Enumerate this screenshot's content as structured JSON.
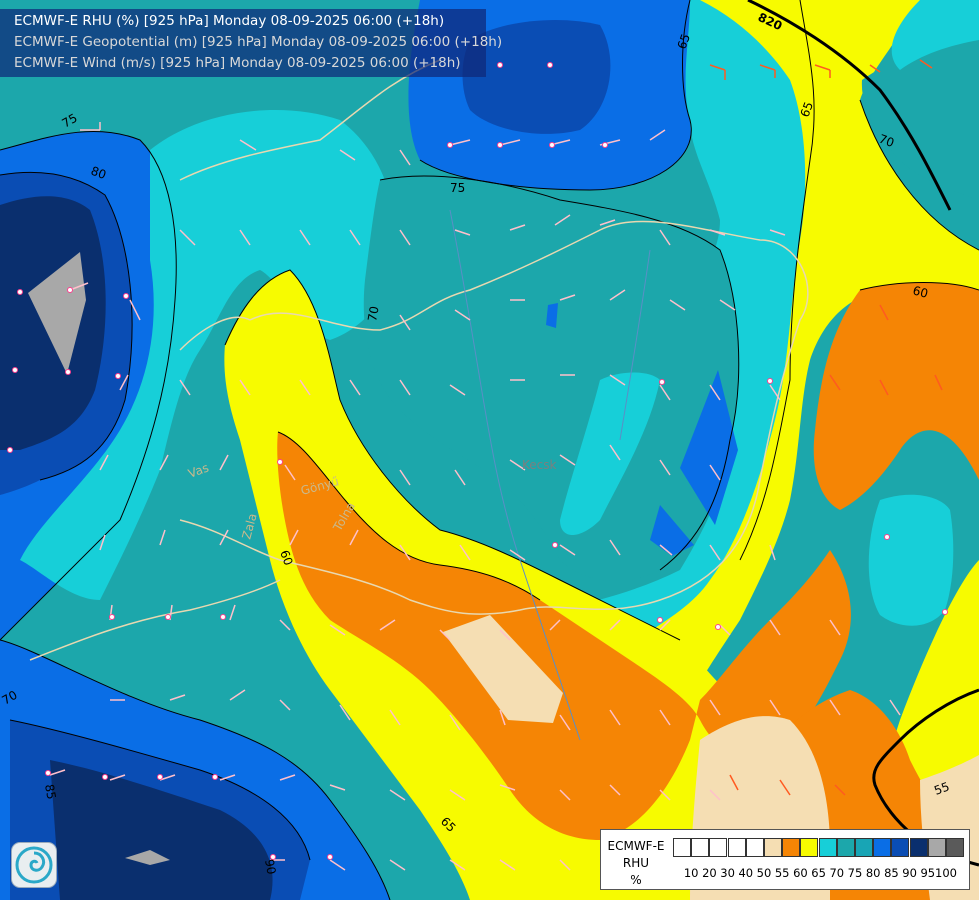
{
  "titles": [
    {
      "text": "ECMWF-E RHU (%) [925 hPa] Monday 08-09-2025 06:00 (+18h)",
      "color": "#ffffff"
    },
    {
      "text": "ECMWF-E Geopotential (m) [925 hPa] Monday 08-09-2025 06:00 (+18h)",
      "color": "#d8d8d8"
    },
    {
      "text": "ECMWF-E Wind (m/s) [925 hPa] Monday 08-09-2025 06:00 (+18h)",
      "color": "#d8d8d8"
    }
  ],
  "legend": {
    "name_lines": [
      "ECMWF-E",
      "RHU",
      "%"
    ],
    "ticks": [
      "10",
      "20",
      "30",
      "40",
      "50",
      "55",
      "60",
      "65",
      "70",
      "75",
      "80",
      "85",
      "90",
      "95",
      "100"
    ],
    "colors": [
      "#ffffff",
      "#ffffff",
      "#ffffff",
      "#ffffff",
      "#ffffff",
      "#f5deb3",
      "#f58505",
      "#f7fb00",
      "#17cfd8",
      "#1ca7ab",
      "#18a5b5",
      "#0a6ee6",
      "#0a4db4",
      "#0a2f6e",
      "#a8a8a8",
      "#5a5a5a"
    ]
  },
  "contour_labels": [
    "820",
    "65",
    "65",
    "70",
    "75",
    "75",
    "70",
    "60",
    "80",
    "60",
    "85",
    "90",
    "65",
    "55",
    "70"
  ],
  "place_labels": [
    "Vas",
    "Gönyű",
    "Tolna",
    "Zala",
    "Kecsk"
  ],
  "colors": {
    "contour": "#000000",
    "border": "#e8d8b0",
    "river": "#5a8fc6",
    "wind_barb": "#ffc0cb",
    "wind_barb_strong": "#ff5a20"
  }
}
